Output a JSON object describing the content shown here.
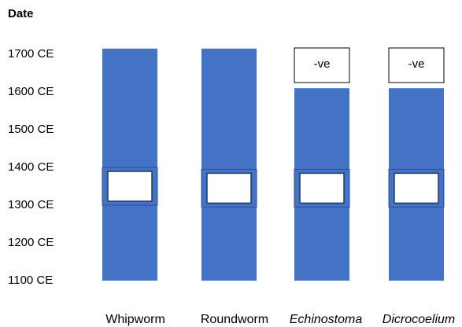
{
  "chart_data": {
    "type": "bar",
    "ylabel": "Date",
    "y_ticks": [
      "1100 CE",
      "1200 CE",
      "1300 CE",
      "1400 CE",
      "1500 CE",
      "1600 CE",
      "1700 CE"
    ],
    "ylim": [
      1100,
      1700
    ],
    "categories": [
      {
        "label": "Whipworm",
        "italic": false
      },
      {
        "label": "Roundworm",
        "italic": false
      },
      {
        "label": "Echinostoma",
        "italic": true
      },
      {
        "label": "Dicrocoelium",
        "italic": true
      }
    ],
    "series": [
      {
        "values": [
          {
            "start": 1100,
            "end": 1715,
            "gap": [
              1300,
              1400
            ],
            "note": ""
          },
          {
            "start": 1100,
            "end": 1715,
            "gap": [
              1295,
              1395
            ],
            "note": ""
          },
          {
            "start": 1100,
            "end": 1610,
            "gap": [
              1295,
              1395
            ],
            "note": "-ve"
          },
          {
            "start": 1100,
            "end": 1610,
            "gap": [
              1295,
              1395
            ],
            "note": "-ve"
          }
        ]
      }
    ],
    "colors": {
      "bar": "#4472c4",
      "gap": "#ffffff"
    }
  }
}
